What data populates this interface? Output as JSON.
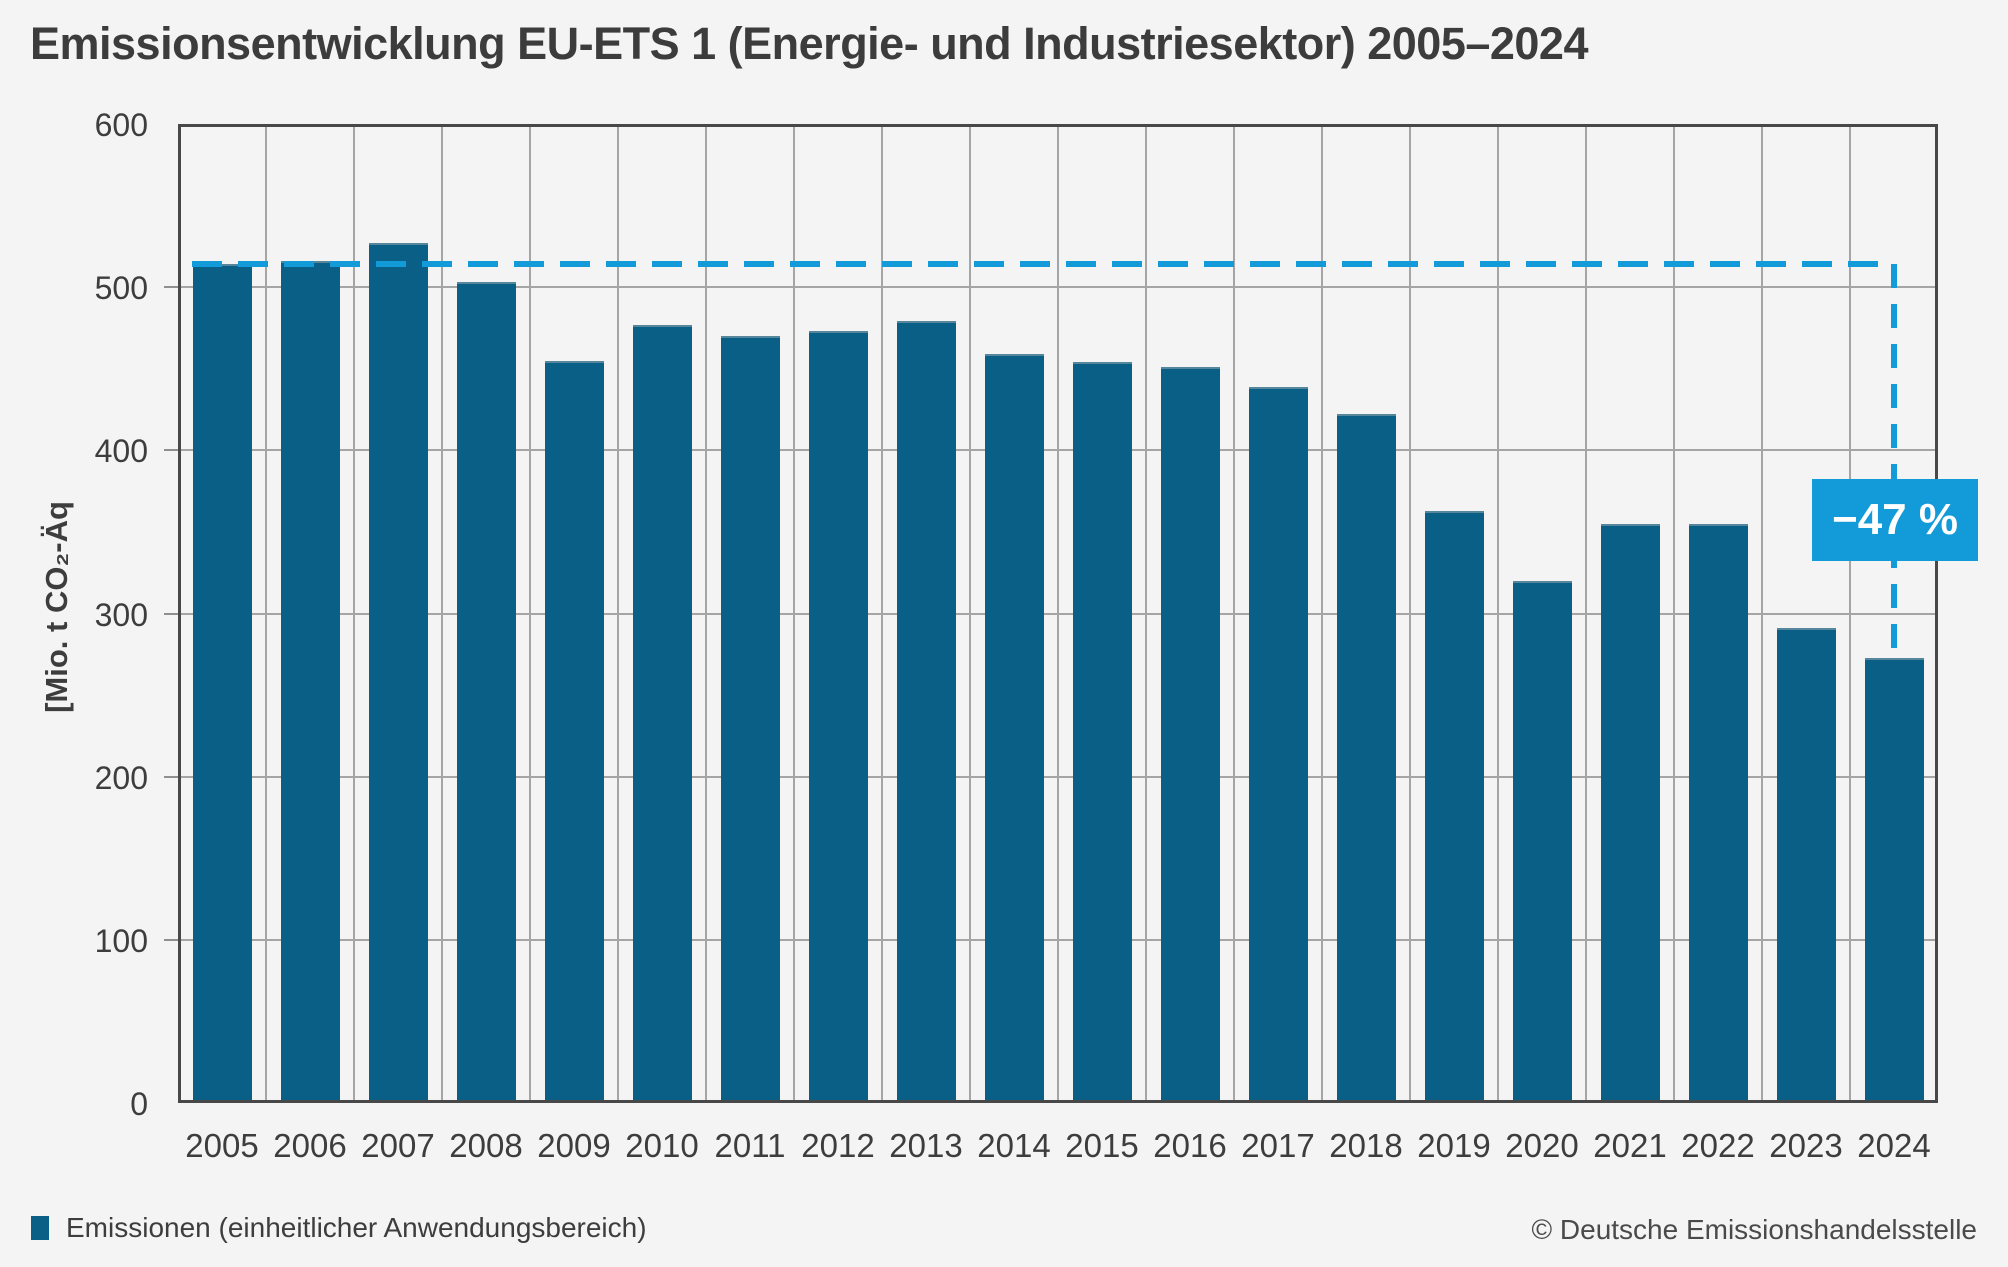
{
  "title": "Emissionsentwicklung EU-ETS 1 (Energie- und Industriesektor) 2005–2024",
  "y_axis": {
    "label": "[Mio. t CO₂-Äq"
  },
  "chart_data": {
    "type": "bar",
    "title": "Emissionsentwicklung EU-ETS 1 (Energie- und Industriesektor) 2005–2024",
    "categories": [
      "2005",
      "2006",
      "2007",
      "2008",
      "2009",
      "2010",
      "2011",
      "2012",
      "2013",
      "2014",
      "2015",
      "2016",
      "2017",
      "2018",
      "2019",
      "2020",
      "2021",
      "2022",
      "2023",
      "2024"
    ],
    "values": [
      514,
      516,
      527,
      503,
      455,
      477,
      470,
      473,
      479,
      459,
      454,
      451,
      439,
      422,
      363,
      320,
      355,
      355,
      291,
      273
    ],
    "series_name": "Emissionen (einheitlicher Anwendungsbereich)",
    "xlabel": "",
    "ylabel": "[Mio. t CO₂-Äq",
    "ylim": [
      0,
      600
    ],
    "yticks": [
      0,
      100,
      200,
      300,
      400,
      500,
      600
    ],
    "grid": true,
    "legend_position": "bottom-left",
    "bar_color": "#0a5f87",
    "accent_color": "#129bd8",
    "reference_line": {
      "value": 514,
      "style": "dashed",
      "color": "#129bd8",
      "from_category": "2005",
      "to_category": "2024",
      "drop_to_value": 273
    },
    "annotation": {
      "label": "−47 %",
      "at_category": "2024",
      "background": "#129bd8",
      "text_color": "#ffffff"
    }
  },
  "legend": {
    "swatch_color": "#0a5f87",
    "label": "Emissionen (einheitlicher Anwendungsbereich)"
  },
  "footer": {
    "copyright": "© Deutsche Emissionshandelsstelle"
  }
}
